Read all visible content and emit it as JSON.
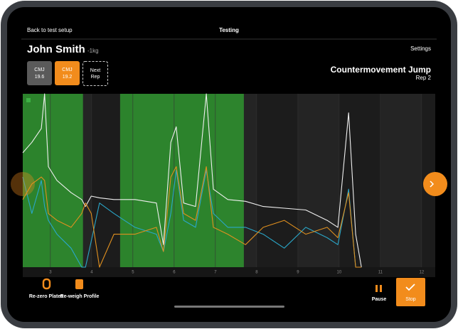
{
  "nav": {
    "back": "Back to test setup",
    "title": "Testing",
    "settings": "Settings"
  },
  "athlete": {
    "name": "John Smith",
    "weight": "-1kg"
  },
  "reps": [
    {
      "label": "CMJ",
      "value": 19.6
    },
    {
      "label": "CMJ",
      "value": 19.2
    },
    {
      "label": "Next Rep"
    }
  ],
  "test": {
    "title": "Countermovement Jump",
    "rep": "Rep 2"
  },
  "toolbar": {
    "rezero": "Re-zero Plates",
    "reweigh": "Re-weigh Profile",
    "pause": "Pause",
    "stop": "Stop"
  },
  "chart_data": {
    "type": "line",
    "x": [
      2.33,
      2.55,
      2.78,
      2.86,
      2.95,
      3.16,
      3.5,
      3.76,
      3.85,
      3.99,
      4.19,
      4.54,
      5.05,
      5.57,
      5.74,
      5.92,
      6.05,
      6.23,
      6.52,
      6.78,
      6.95,
      7.3,
      7.73,
      8.16,
      8.67,
      9.19,
      9.71,
      9.97,
      10.23,
      10.4,
      10.54
    ],
    "series": [
      {
        "color": "#f0f0f0",
        "values": [
          66,
          72,
          80,
          100,
          58,
          50,
          43,
          39,
          35,
          41,
          40,
          39,
          39,
          37,
          13,
          72,
          81,
          37,
          35,
          100,
          45,
          39,
          38,
          35,
          34,
          33,
          27,
          23,
          89,
          19,
          0
        ]
      },
      {
        "color": "#2aa7c9",
        "values": [
          52,
          31,
          50,
          35,
          27,
          19,
          11,
          0,
          0,
          15,
          37,
          31,
          23,
          19,
          9,
          31,
          56,
          27,
          23,
          56,
          31,
          23,
          23,
          19,
          11,
          23,
          17,
          13,
          45,
          0,
          0
        ]
      },
      {
        "color": "#e0901f",
        "values": [
          39,
          48,
          52,
          50,
          31,
          27,
          23,
          31,
          37,
          31,
          0,
          19,
          19,
          23,
          9,
          52,
          58,
          31,
          27,
          58,
          23,
          19,
          13,
          23,
          27,
          19,
          23,
          17,
          43,
          0,
          0
        ]
      }
    ],
    "regions": [
      [
        2.33,
        3.79
      ],
      [
        4.69,
        7.69
      ]
    ],
    "region_color": "#2f8f2f",
    "xlim": [
      2.33,
      12.33
    ],
    "xticks": [
      3,
      4,
      5,
      6,
      7,
      8,
      9,
      10,
      11,
      12
    ],
    "ylim": [
      0,
      100
    ],
    "grid": true
  }
}
